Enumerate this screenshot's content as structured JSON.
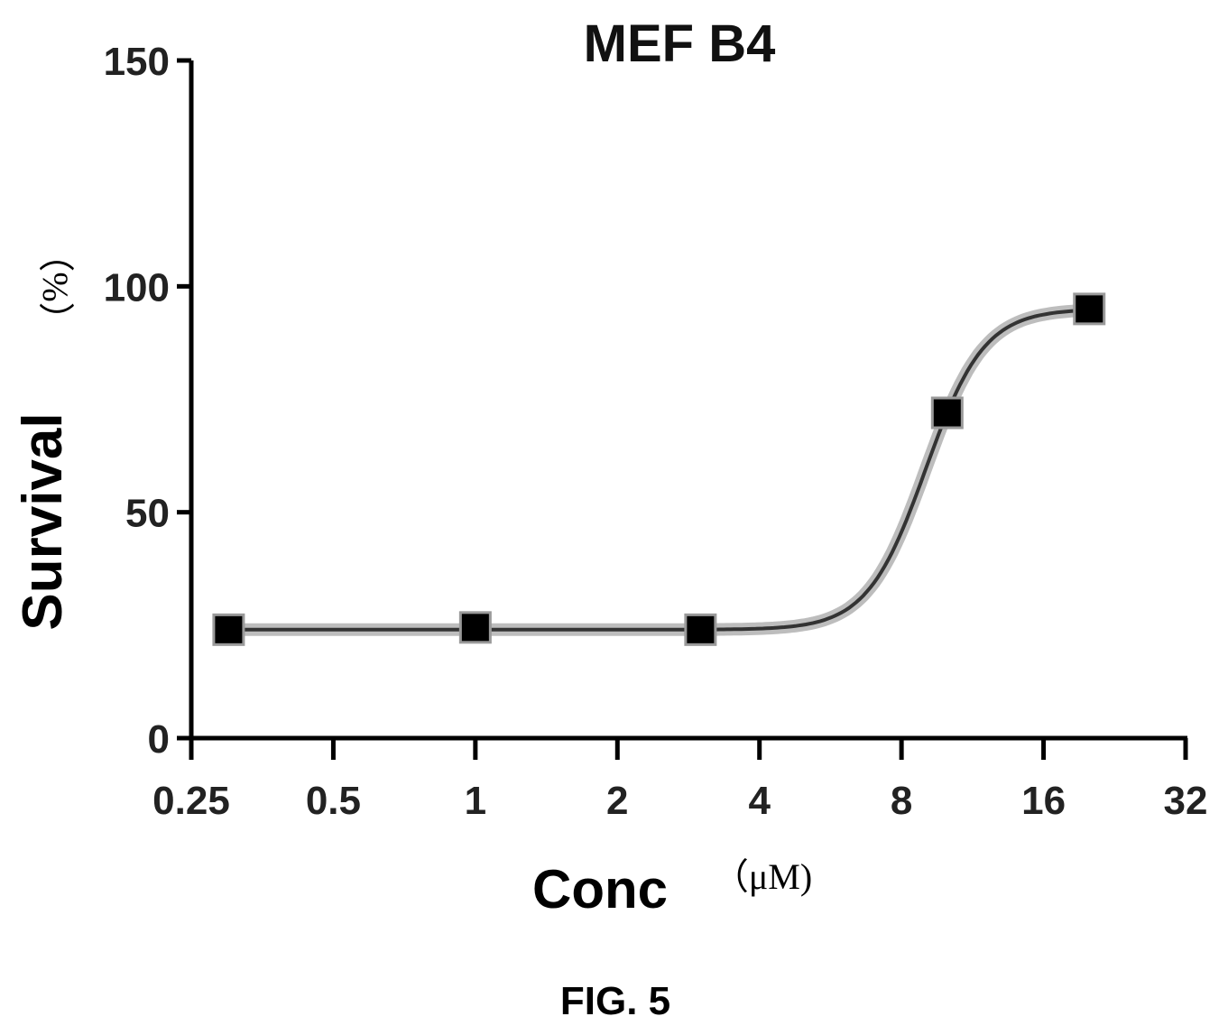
{
  "chart_data": {
    "type": "line",
    "title": "MEF B4",
    "xlabel": "Conc",
    "xlabel_unit": "（μM)",
    "ylabel": "Survival",
    "ylabel_unit": "（%）",
    "x_scale": "log2",
    "xlim": [
      0.25,
      32
    ],
    "ylim": [
      0,
      150
    ],
    "x_ticks": [
      0.25,
      0.5,
      1,
      2,
      4,
      8,
      16,
      32
    ],
    "x_tick_labels": [
      "0.25",
      "0.5",
      "1",
      "2",
      "4",
      "8",
      "16",
      "32"
    ],
    "y_ticks": [
      0,
      50,
      100,
      150
    ],
    "y_tick_labels": [
      "0",
      "50",
      "100",
      "150"
    ],
    "series": [
      {
        "x": [
          0.3,
          1.0,
          3.0,
          10.0,
          20.0
        ],
        "y": [
          24,
          24.5,
          24,
          72,
          95
        ],
        "marker": "square",
        "color": "#000000"
      }
    ],
    "fit_curve": {
      "model": "sigmoid",
      "bottom": 24,
      "top": 95,
      "ec50": 9.0,
      "hill": 7.0,
      "color": "#333333"
    },
    "grid": false,
    "legend": "none"
  },
  "caption": "FIG. 5"
}
